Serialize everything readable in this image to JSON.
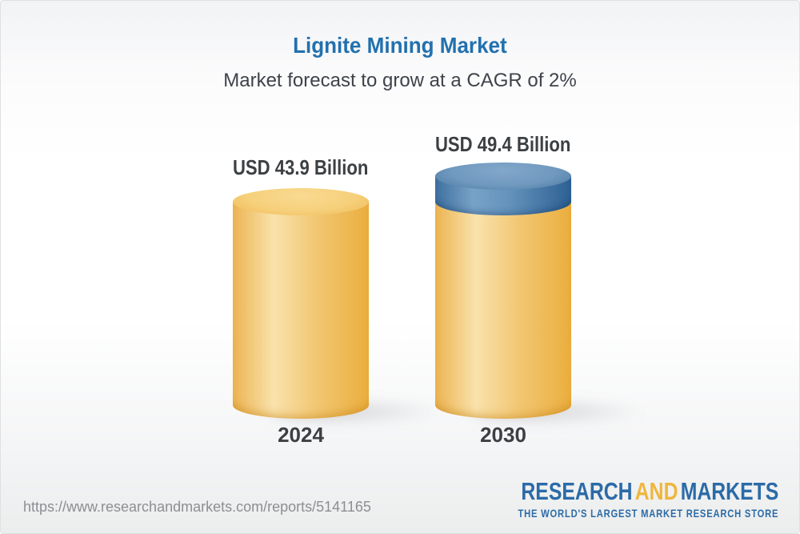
{
  "header": {
    "title": "Lignite Mining Market",
    "subtitle": "Market forecast to grow at a CAGR of 2%"
  },
  "chart_data": {
    "type": "bar",
    "categories": [
      "2024",
      "2030"
    ],
    "values": [
      43.9,
      49.4
    ],
    "value_labels": [
      "USD 43.9 Billion",
      "USD 49.4 Billion"
    ],
    "unit": "USD Billion",
    "cagr": "2%",
    "ylim": [
      0,
      49.4
    ],
    "legend_position": "none",
    "grid": false,
    "bar_style": "3d-cylinder",
    "bar_colors": {
      "base_gold": "#f2c875",
      "growth_cap_blue": "#5e8db8"
    },
    "notes": "2030 bar drawn as gold cylinder up to 2024 level with blue cap segment representing growth to 49.4"
  },
  "footer": {
    "url": "https://www.researchandmarkets.com/reports/5141165",
    "logo": {
      "word1": "RESEARCH",
      "word2": "AND",
      "word3": "MARKETS",
      "tagline": "THE WORLD'S LARGEST MARKET RESEARCH STORE"
    }
  },
  "colors": {
    "title_blue": "#2271ae",
    "text_dark": "#3c4043",
    "subtitle_gray": "#3e434a",
    "url_gray": "#8c8f92",
    "logo_blue": "#2b6ba7",
    "logo_yellow": "#efb63e"
  }
}
